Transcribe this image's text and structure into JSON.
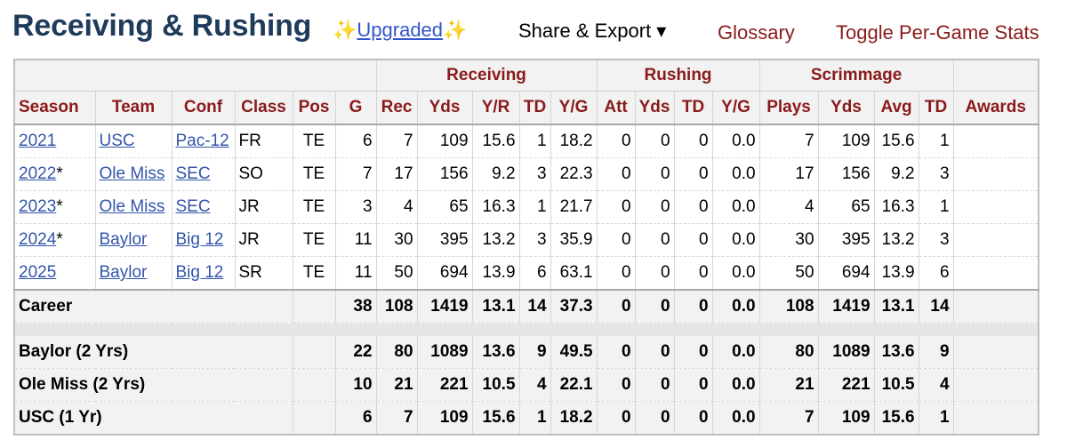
{
  "header": {
    "title": "Receiving & Rushing",
    "sparkle_left": "✨",
    "upgraded_label": "Upgraded",
    "sparkle_right": "✨",
    "share_label": "Share & Export ▾",
    "glossary_label": "Glossary",
    "toggle_label": "Toggle Per-Game Stats"
  },
  "table": {
    "groups": {
      "receiving": "Receiving",
      "rushing": "Rushing",
      "scrimmage": "Scrimmage"
    },
    "columns": [
      "Season",
      "Team",
      "Conf",
      "Class",
      "Pos",
      "G",
      "Rec",
      "Yds",
      "Y/R",
      "TD",
      "Y/G",
      "Att",
      "Yds",
      "TD",
      "Y/G",
      "Plays",
      "Yds",
      "Avg",
      "TD",
      "Awards"
    ],
    "rows": [
      {
        "season": "2021",
        "star": "",
        "team": "USC",
        "conf": "Pac-12",
        "class": "FR",
        "pos": "TE",
        "g": "6",
        "rec": "7",
        "rec_yds": "109",
        "yr": "15.6",
        "rec_td": "1",
        "rec_yg": "18.2",
        "att": "0",
        "rush_yds": "0",
        "rush_td": "0",
        "rush_yg": "0.0",
        "plays": "7",
        "scrim_yds": "109",
        "avg": "15.6",
        "scrim_td": "1",
        "awards": ""
      },
      {
        "season": "2022",
        "star": "*",
        "team": "Ole Miss",
        "conf": "SEC",
        "class": "SO",
        "pos": "TE",
        "g": "7",
        "rec": "17",
        "rec_yds": "156",
        "yr": "9.2",
        "rec_td": "3",
        "rec_yg": "22.3",
        "att": "0",
        "rush_yds": "0",
        "rush_td": "0",
        "rush_yg": "0.0",
        "plays": "17",
        "scrim_yds": "156",
        "avg": "9.2",
        "scrim_td": "3",
        "awards": ""
      },
      {
        "season": "2023",
        "star": "*",
        "team": "Ole Miss",
        "conf": "SEC",
        "class": "JR",
        "pos": "TE",
        "g": "3",
        "rec": "4",
        "rec_yds": "65",
        "yr": "16.3",
        "rec_td": "1",
        "rec_yg": "21.7",
        "att": "0",
        "rush_yds": "0",
        "rush_td": "0",
        "rush_yg": "0.0",
        "plays": "4",
        "scrim_yds": "65",
        "avg": "16.3",
        "scrim_td": "1",
        "awards": ""
      },
      {
        "season": "2024",
        "star": "*",
        "team": "Baylor",
        "conf": "Big 12",
        "class": "JR",
        "pos": "TE",
        "g": "11",
        "rec": "30",
        "rec_yds": "395",
        "yr": "13.2",
        "rec_td": "3",
        "rec_yg": "35.9",
        "att": "0",
        "rush_yds": "0",
        "rush_td": "0",
        "rush_yg": "0.0",
        "plays": "30",
        "scrim_yds": "395",
        "avg": "13.2",
        "scrim_td": "3",
        "awards": ""
      },
      {
        "season": "2025",
        "star": "",
        "team": "Baylor",
        "conf": "Big 12",
        "class": "SR",
        "pos": "TE",
        "g": "11",
        "rec": "50",
        "rec_yds": "694",
        "yr": "13.9",
        "rec_td": "6",
        "rec_yg": "63.1",
        "att": "0",
        "rush_yds": "0",
        "rush_td": "0",
        "rush_yg": "0.0",
        "plays": "50",
        "scrim_yds": "694",
        "avg": "13.9",
        "scrim_td": "6",
        "awards": ""
      }
    ],
    "career": {
      "label": "Career",
      "g": "38",
      "rec": "108",
      "rec_yds": "1419",
      "yr": "13.1",
      "rec_td": "14",
      "rec_yg": "37.3",
      "att": "0",
      "rush_yds": "0",
      "rush_td": "0",
      "rush_yg": "0.0",
      "plays": "108",
      "scrim_yds": "1419",
      "avg": "13.1",
      "scrim_td": "14"
    },
    "schools": [
      {
        "label": "Baylor (2 Yrs)",
        "g": "22",
        "rec": "80",
        "rec_yds": "1089",
        "yr": "13.6",
        "rec_td": "9",
        "rec_yg": "49.5",
        "att": "0",
        "rush_yds": "0",
        "rush_td": "0",
        "rush_yg": "0.0",
        "plays": "80",
        "scrim_yds": "1089",
        "avg": "13.6",
        "scrim_td": "9"
      },
      {
        "label": "Ole Miss (2 Yrs)",
        "g": "10",
        "rec": "21",
        "rec_yds": "221",
        "yr": "10.5",
        "rec_td": "4",
        "rec_yg": "22.1",
        "att": "0",
        "rush_yds": "0",
        "rush_td": "0",
        "rush_yg": "0.0",
        "plays": "21",
        "scrim_yds": "221",
        "avg": "10.5",
        "scrim_td": "4"
      },
      {
        "label": "USC (1 Yr)",
        "g": "6",
        "rec": "7",
        "rec_yds": "109",
        "yr": "15.6",
        "rec_td": "1",
        "rec_yg": "18.2",
        "att": "0",
        "rush_yds": "0",
        "rush_td": "0",
        "rush_yg": "0.0",
        "plays": "7",
        "scrim_yds": "109",
        "avg": "15.6",
        "scrim_td": "1"
      }
    ]
  }
}
